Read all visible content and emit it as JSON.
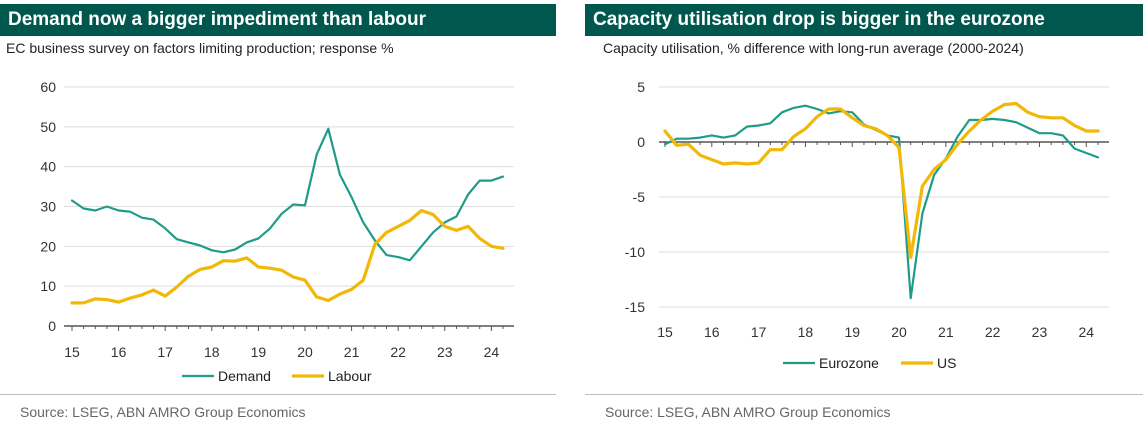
{
  "left_panel": {
    "title": "Demand now a bigger impediment than labour",
    "subtitle": "EC business survey on factors limiting production; response %",
    "source": "Source: LSEG, ABN AMRO Group Economics"
  },
  "right_panel": {
    "title": "Capacity utilisation drop is bigger in the eurozone",
    "subtitle": "Capacity utilisation, % difference with long-run average (2000-2024)",
    "source": "Source: LSEG, ABN AMRO Group Economics"
  },
  "colors": {
    "teal": "#1f9b8a",
    "gold": "#f2b807",
    "header_bg": "#00574e",
    "axis": "#555555",
    "grid": "#dddddd"
  },
  "chart_data": [
    {
      "type": "line",
      "title": "Demand now a bigger impediment than labour",
      "xlabel": "",
      "ylabel": "",
      "xlim": [
        2015,
        2024.4
      ],
      "ylim": [
        0,
        60
      ],
      "x_ticks": [
        "15",
        "16",
        "17",
        "18",
        "19",
        "20",
        "21",
        "22",
        "23",
        "24"
      ],
      "y_ticks": [
        "0",
        "10",
        "20",
        "30",
        "40",
        "50",
        "60"
      ],
      "grid": "horizontal",
      "legend": "bottom",
      "series": [
        {
          "name": "Demand",
          "color": "#1f9b8a",
          "x": [
            2015.0,
            2015.25,
            2015.5,
            2015.75,
            2016.0,
            2016.25,
            2016.5,
            2016.75,
            2017.0,
            2017.25,
            2017.5,
            2017.75,
            2018.0,
            2018.25,
            2018.5,
            2018.75,
            2019.0,
            2019.25,
            2019.5,
            2019.75,
            2020.0,
            2020.25,
            2020.5,
            2020.75,
            2021.0,
            2021.25,
            2021.5,
            2021.75,
            2022.0,
            2022.25,
            2022.5,
            2022.75,
            2023.0,
            2023.25,
            2023.5,
            2023.75,
            2024.0,
            2024.25
          ],
          "values": [
            31.5,
            29.5,
            29,
            30,
            29,
            28.7,
            27.2,
            26.7,
            24.5,
            21.8,
            21,
            20.2,
            19,
            18.5,
            19.2,
            21,
            22,
            24.5,
            28.2,
            30.5,
            30.3,
            43,
            49.5,
            38,
            32.3,
            26,
            21.5,
            17.8,
            17.3,
            16.5,
            20,
            23.5,
            26,
            27.5,
            33,
            36.5,
            36.5,
            37.5
          ]
        },
        {
          "name": "Labour",
          "color": "#f2b807",
          "x": [
            2015.0,
            2015.25,
            2015.5,
            2015.75,
            2016.0,
            2016.25,
            2016.5,
            2016.75,
            2017.0,
            2017.25,
            2017.5,
            2017.75,
            2018.0,
            2018.25,
            2018.5,
            2018.75,
            2019.0,
            2019.25,
            2019.5,
            2019.75,
            2020.0,
            2020.25,
            2020.5,
            2020.75,
            2021.0,
            2021.25,
            2021.5,
            2021.75,
            2022.0,
            2022.25,
            2022.5,
            2022.75,
            2023.0,
            2023.25,
            2023.5,
            2023.75,
            2024.0,
            2024.25
          ],
          "values": [
            5.8,
            5.8,
            6.8,
            6.6,
            6,
            7,
            7.8,
            9,
            7.5,
            9.8,
            12.5,
            14.2,
            14.8,
            16.4,
            16.3,
            17.1,
            14.8,
            14.5,
            14,
            12.3,
            11.5,
            7.3,
            6.4,
            8,
            9.2,
            11.5,
            20.5,
            23.5,
            25,
            26.5,
            29,
            28,
            25,
            24,
            25,
            22,
            20,
            19.5
          ]
        }
      ]
    },
    {
      "type": "line",
      "title": "Capacity utilisation drop is bigger in the eurozone",
      "xlabel": "",
      "ylabel": "",
      "xlim": [
        2015,
        2024.4
      ],
      "ylim": [
        -15,
        5
      ],
      "x_ticks": [
        "15",
        "16",
        "17",
        "18",
        "19",
        "20",
        "21",
        "22",
        "23",
        "24"
      ],
      "y_ticks": [
        "-15",
        "-10",
        "-5",
        "0",
        "5"
      ],
      "grid": "horizontal",
      "legend": "bottom",
      "series": [
        {
          "name": "Eurozone",
          "color": "#1f9b8a",
          "x": [
            2015.0,
            2015.25,
            2015.5,
            2015.75,
            2016.0,
            2016.25,
            2016.5,
            2016.75,
            2017.0,
            2017.25,
            2017.5,
            2017.75,
            2018.0,
            2018.25,
            2018.5,
            2018.75,
            2019.0,
            2019.25,
            2019.5,
            2019.75,
            2020.0,
            2020.25,
            2020.5,
            2020.75,
            2021.0,
            2021.25,
            2021.5,
            2021.75,
            2022.0,
            2022.25,
            2022.5,
            2022.75,
            2023.0,
            2023.25,
            2023.5,
            2023.75,
            2024.0,
            2024.25
          ],
          "values": [
            -0.2,
            0.3,
            0.3,
            0.4,
            0.6,
            0.4,
            0.6,
            1.4,
            1.5,
            1.7,
            2.7,
            3.1,
            3.3,
            3.0,
            2.6,
            2.8,
            2.7,
            1.6,
            1.1,
            0.6,
            0.4,
            -14.2,
            -6.5,
            -3.0,
            -1.5,
            0.5,
            2.0,
            2.0,
            2.1,
            2.0,
            1.8,
            1.3,
            0.8,
            0.8,
            0.6,
            -0.6,
            -1.0,
            -1.4
          ]
        },
        {
          "name": "US",
          "color": "#f2b807",
          "x": [
            2015.0,
            2015.25,
            2015.5,
            2015.75,
            2016.0,
            2016.25,
            2016.5,
            2016.75,
            2017.0,
            2017.25,
            2017.5,
            2017.75,
            2018.0,
            2018.25,
            2018.5,
            2018.75,
            2019.0,
            2019.25,
            2019.5,
            2019.75,
            2020.0,
            2020.25,
            2020.5,
            2020.75,
            2021.0,
            2021.25,
            2021.5,
            2021.75,
            2022.0,
            2022.25,
            2022.5,
            2022.75,
            2023.0,
            2023.25,
            2023.5,
            2023.75,
            2024.0,
            2024.25
          ],
          "values": [
            1.0,
            -0.3,
            -0.2,
            -1.2,
            -1.6,
            -2.0,
            -1.9,
            -2.0,
            -1.9,
            -0.7,
            -0.7,
            0.5,
            1.2,
            2.3,
            3.0,
            3.0,
            2.2,
            1.5,
            1.2,
            0.6,
            -0.5,
            -10.5,
            -4.0,
            -2.5,
            -1.6,
            -0.2,
            1.0,
            2.0,
            2.8,
            3.4,
            3.5,
            2.7,
            2.3,
            2.2,
            2.2,
            1.5,
            1.0,
            1.0
          ]
        }
      ]
    }
  ]
}
